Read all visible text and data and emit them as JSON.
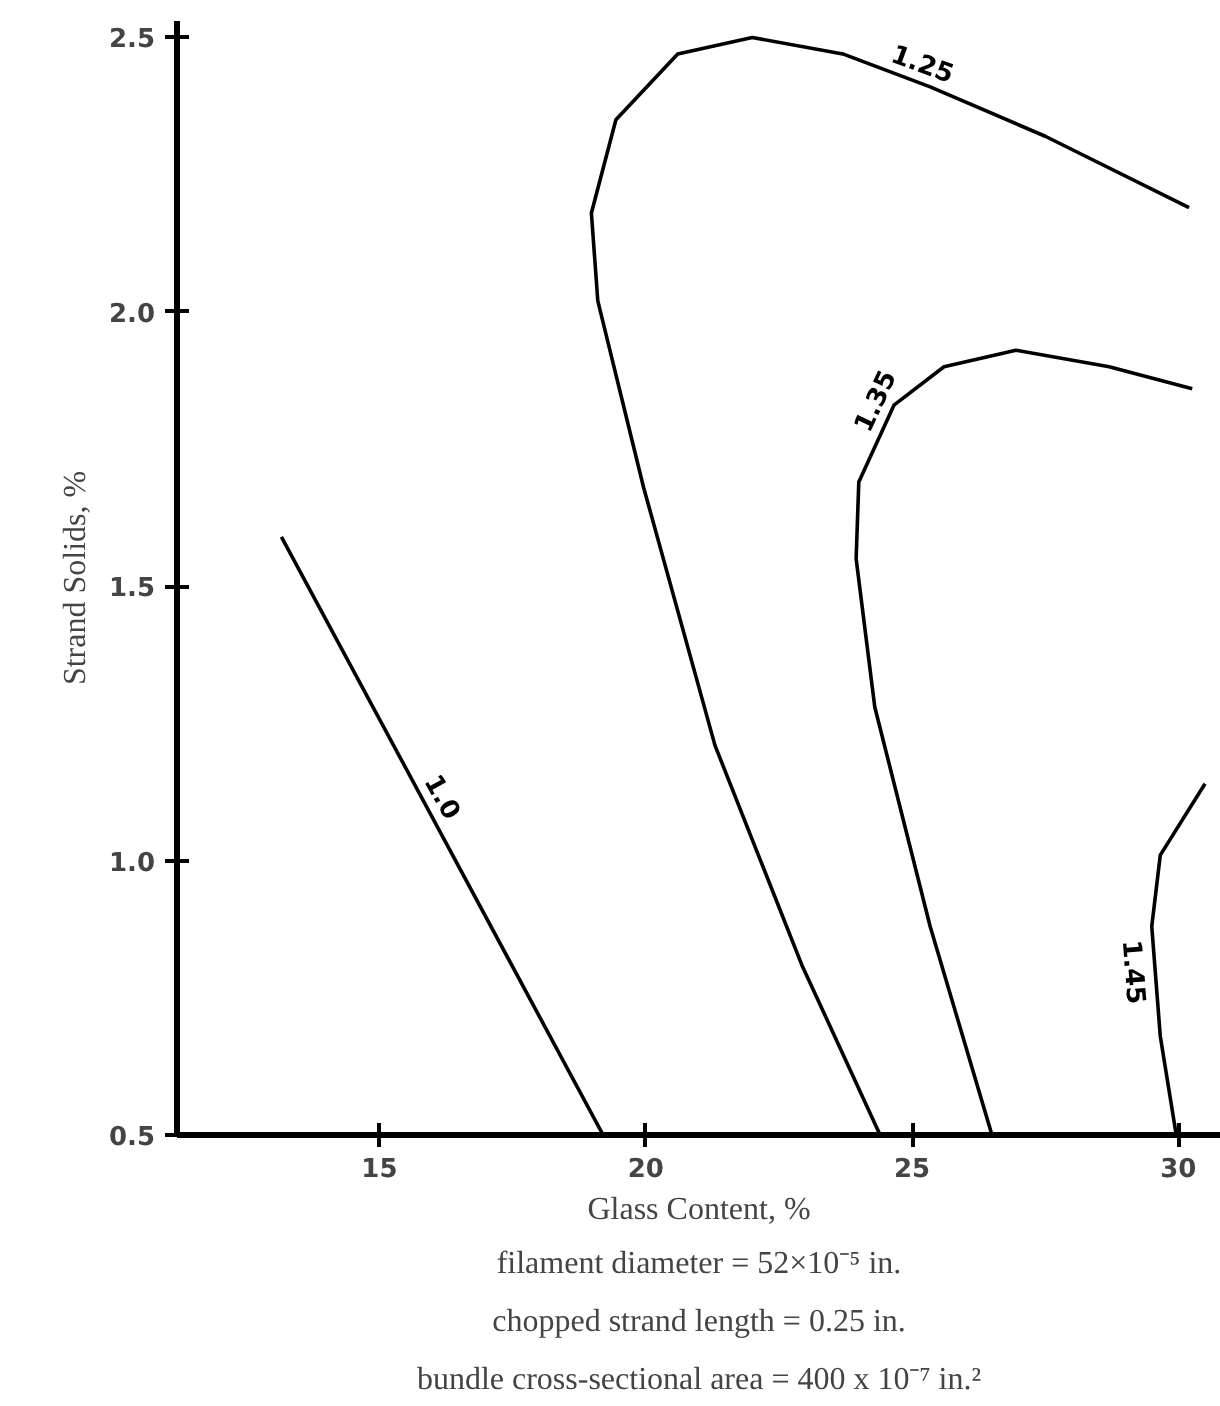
{
  "chart_data": {
    "type": "line",
    "xlabel": "Glass Content, %",
    "ylabel": "Strand Solids, %",
    "xlim": [
      11.2,
      30.8
    ],
    "ylim": [
      0.5,
      2.53
    ],
    "xticks": [
      15,
      20,
      25,
      30
    ],
    "yticks": [
      {
        "value": 0.5,
        "label": "0.5"
      },
      {
        "value": 1,
        "label": "1.0"
      },
      {
        "value": 1.5,
        "label": "1.5"
      },
      {
        "value": 2,
        "label": "2.0"
      },
      {
        "value": 2.5,
        "label": "2.5"
      }
    ],
    "grid": false,
    "marker": "none",
    "line_style": "solid",
    "series": [
      {
        "name": "1.0",
        "color": "#000000",
        "x": [
          13.16,
          19.2
        ],
        "values": [
          1.59,
          0.5
        ]
      },
      {
        "name": "1.25",
        "color": "#000000",
        "x": [
          24.4,
          22.93,
          21.3,
          19.96,
          19.1,
          18.98,
          19.44,
          20.6,
          22.0,
          23.7,
          25.34,
          27.5,
          30.2
        ],
        "values": [
          0.5,
          0.81,
          1.21,
          1.68,
          2.02,
          2.18,
          2.35,
          2.47,
          2.5,
          2.47,
          2.41,
          2.32,
          2.19
        ]
      },
      {
        "name": "1.35",
        "color": "#000000",
        "x": [
          26.5,
          25.34,
          24.3,
          23.95,
          24.0,
          24.66,
          25.6,
          26.95,
          28.7,
          30.26
        ],
        "values": [
          0.5,
          0.88,
          1.28,
          1.55,
          1.69,
          1.83,
          1.9,
          1.93,
          1.9,
          1.86
        ]
      },
      {
        "name": "1.45",
        "color": "#000000",
        "x": [
          29.96,
          29.66,
          29.5,
          29.66,
          30.5
        ],
        "values": [
          0.5,
          0.68,
          0.88,
          1.01,
          1.14
        ]
      }
    ],
    "annotations": [
      "filament diameter = 52×10⁻⁵ in.",
      "chopped strand length = 0.25 in.",
      "bundle cross-sectional area = 400 x 10⁻⁷ in.²"
    ]
  }
}
